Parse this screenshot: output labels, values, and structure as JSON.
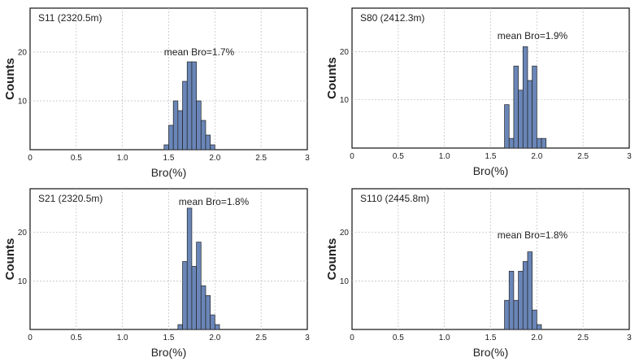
{
  "chart_data": [
    {
      "type": "bar",
      "title": "S11 (2320.5m)",
      "annotation": "mean Bro=1.7%",
      "xlabel": "Bro(%)",
      "ylabel": "Counts",
      "xlim": [
        0,
        3
      ],
      "ylim": [
        0,
        29
      ],
      "xticks": [
        0,
        0.5,
        1.0,
        1.5,
        2.0,
        2.5,
        3
      ],
      "xtick_labels": [
        "0",
        "0.5",
        "1.0",
        "1.5",
        "2.0",
        "2.5",
        "3"
      ],
      "yticks": [
        10,
        20
      ],
      "bin_width": 0.05,
      "bins": [
        1.45,
        1.5,
        1.55,
        1.6,
        1.65,
        1.7,
        1.75,
        1.8,
        1.85,
        1.9,
        1.95
      ],
      "values": [
        1,
        5,
        10,
        8,
        14,
        18,
        18,
        10,
        6,
        3,
        1
      ]
    },
    {
      "type": "bar",
      "title": "S80 (2412.3m)",
      "annotation": "mean Bro=1.9%",
      "xlabel": "Bro(%)",
      "ylabel": "Counts",
      "xlim": [
        0,
        3
      ],
      "ylim": [
        0,
        29
      ],
      "xticks": [
        0,
        0.5,
        1.0,
        1.5,
        2.0,
        2.5,
        3
      ],
      "xtick_labels": [
        "0",
        "0.5",
        "1.0",
        "1.5",
        "2.0",
        "2.5",
        "3"
      ],
      "yticks": [
        10,
        20
      ],
      "bin_width": 0.05,
      "bins": [
        1.65,
        1.7,
        1.75,
        1.8,
        1.85,
        1.9,
        1.95,
        2.0,
        2.05
      ],
      "values": [
        9,
        2,
        17,
        12,
        21,
        14,
        17,
        2,
        2
      ]
    },
    {
      "type": "bar",
      "title": "S21 (2320.5m)",
      "annotation": "mean Bro=1.8%",
      "xlabel": "Bro(%)",
      "ylabel": "Counts",
      "xlim": [
        0,
        3
      ],
      "ylim": [
        0,
        29
      ],
      "xticks": [
        0,
        0.5,
        1.0,
        1.5,
        2.0,
        2.5,
        3
      ],
      "xtick_labels": [
        "0",
        "0.5",
        "1.0",
        "1.5",
        "2.0",
        "2.5",
        "3"
      ],
      "yticks": [
        10,
        20
      ],
      "bin_width": 0.05,
      "bins": [
        1.6,
        1.65,
        1.7,
        1.75,
        1.8,
        1.85,
        1.9,
        1.95,
        2.0
      ],
      "values": [
        1,
        14,
        25,
        13,
        18,
        9,
        7,
        3,
        1
      ]
    },
    {
      "type": "bar",
      "title": "S110 (2445.8m)",
      "annotation": "mean Bro=1.8%",
      "xlabel": "Bro(%)",
      "ylabel": "Counts",
      "xlim": [
        0,
        3
      ],
      "ylim": [
        0,
        29
      ],
      "xticks": [
        0,
        0.5,
        1.0,
        1.5,
        2.0,
        2.5,
        3
      ],
      "xtick_labels": [
        "0",
        "0.5",
        "1.0",
        "1.5",
        "2.0",
        "2.5",
        "3"
      ],
      "yticks": [
        10,
        20
      ],
      "bin_width": 0.05,
      "bins": [
        1.65,
        1.7,
        1.75,
        1.8,
        1.85,
        1.9,
        1.95,
        2.0
      ],
      "values": [
        6,
        12,
        6,
        12,
        14,
        16,
        4,
        1
      ]
    }
  ]
}
